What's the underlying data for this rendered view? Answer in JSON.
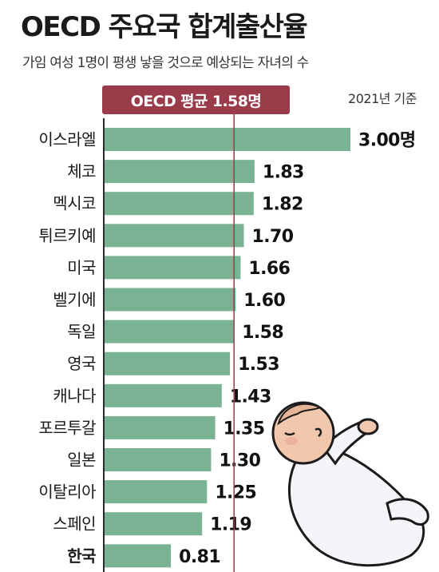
{
  "title": "OECD 주요국 합계출산율",
  "subtitle": "가임 여성 1명이 평생 낳을 것으로 예상되는 자녀의 수",
  "basis": "2021년 기준",
  "average_label": "OECD 평균 1.58명",
  "colors": {
    "bar": "#7ab394",
    "average_line": "#9a3b4a",
    "badge": "#9a3b4a"
  },
  "chart_data": {
    "type": "bar",
    "orientation": "horizontal",
    "unit": "명",
    "categories": [
      "이스라엘",
      "체코",
      "멕시코",
      "튀르키예",
      "미국",
      "벨기에",
      "독일",
      "영국",
      "캐나다",
      "포르투갈",
      "일본",
      "이탈리아",
      "스페인",
      "한국"
    ],
    "values": [
      3.0,
      1.83,
      1.82,
      1.7,
      1.66,
      1.6,
      1.58,
      1.53,
      1.43,
      1.35,
      1.3,
      1.25,
      1.19,
      0.81
    ],
    "value_labels": [
      "3.00명",
      "1.83",
      "1.82",
      "1.70",
      "1.66",
      "1.60",
      "1.58",
      "1.53",
      "1.43",
      "1.35",
      "1.30",
      "1.25",
      "1.19",
      "0.81"
    ],
    "highlight_category": "한국",
    "reference_line": {
      "value": 1.58
    },
    "xlim": [
      0,
      3.0
    ],
    "grid": false,
    "legend": "none"
  }
}
